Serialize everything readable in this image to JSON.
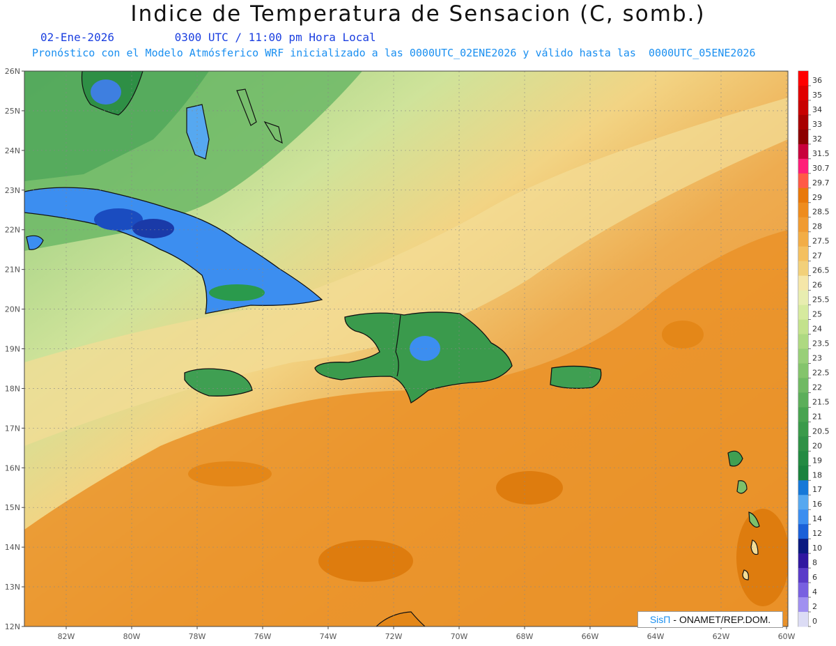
{
  "header": {
    "title": "Indice de Temperatura de Sensacion (C, somb.)",
    "date": "02-Ene-2026",
    "time": "0300 UTC / 11:00 pm Hora Local",
    "model_line": "Pronóstico con el Modelo Atmósferico WRF inicializado a las 0000UTC_02ENE2026 y válido hasta las  0000UTC_05ENE2026"
  },
  "map": {
    "lat_labels": [
      "26N",
      "25N",
      "24N",
      "23N",
      "22N",
      "21N",
      "20N",
      "19N",
      "18N",
      "17N",
      "16N",
      "15N",
      "14N",
      "13N",
      "12N"
    ],
    "lon_labels": [
      "82W",
      "80W",
      "78W",
      "76W",
      "74W",
      "72W",
      "70W",
      "68W",
      "66W",
      "64W",
      "62W",
      "60W"
    ]
  },
  "legend": {
    "levels": [
      "36",
      "35",
      "34",
      "33",
      "32",
      "31.5",
      "30.7",
      "29.7",
      "29",
      "28.5",
      "28",
      "27.5",
      "27",
      "26.5",
      "26",
      "25.5",
      "25",
      "24",
      "23.5",
      "23",
      "22.5",
      "22",
      "21.5",
      "21",
      "20.5",
      "20",
      "19",
      "18",
      "17",
      "16",
      "14",
      "12",
      "10",
      "8",
      "6",
      "4",
      "2",
      "0"
    ],
    "colors": [
      "#ff0000",
      "#e00000",
      "#c80000",
      "#a80000",
      "#8c0000",
      "#c8003c",
      "#ff1e78",
      "#ff5a46",
      "#e8780a",
      "#ee8c1e",
      "#f09b32",
      "#f2ad46",
      "#f4c060",
      "#f2d07a",
      "#f5e6a8",
      "#e8edb0",
      "#d6ea9e",
      "#c3e28c",
      "#aed981",
      "#98cf78",
      "#84c46c",
      "#70b963",
      "#5cae5a",
      "#48a350",
      "#3a9a4a",
      "#2f9146",
      "#238a42",
      "#1a823e",
      "#1678d8",
      "#56a8f0",
      "#3c8ef0",
      "#1a60d8",
      "#0a1a80",
      "#3018a0",
      "#5a3cc8",
      "#7860e0",
      "#a090f0",
      "#dcdcf5"
    ]
  },
  "credit": {
    "brand": "SisΠ",
    "text": "- ONAMET/REP.DOM."
  }
}
